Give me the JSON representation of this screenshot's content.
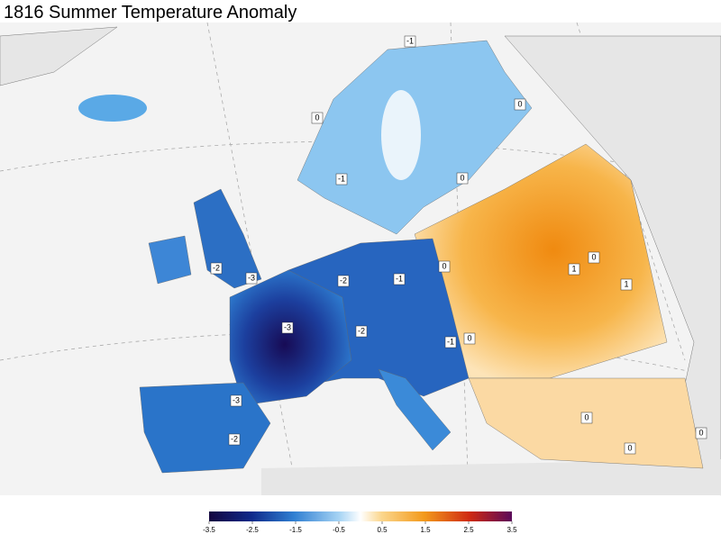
{
  "title": "1816 Summer Temperature Anomaly",
  "contour_labels": [
    -1,
    -1,
    -2,
    -1,
    0,
    0,
    1,
    1,
    -3,
    -2,
    -3,
    -2,
    -1,
    0,
    0,
    0,
    0,
    0,
    0,
    0,
    -2,
    -3
  ],
  "colorbar": {
    "ticks": [
      -3.5,
      -2.5,
      -1.5,
      -0.5,
      0.5,
      1.5,
      2.5,
      3.5
    ]
  }
}
